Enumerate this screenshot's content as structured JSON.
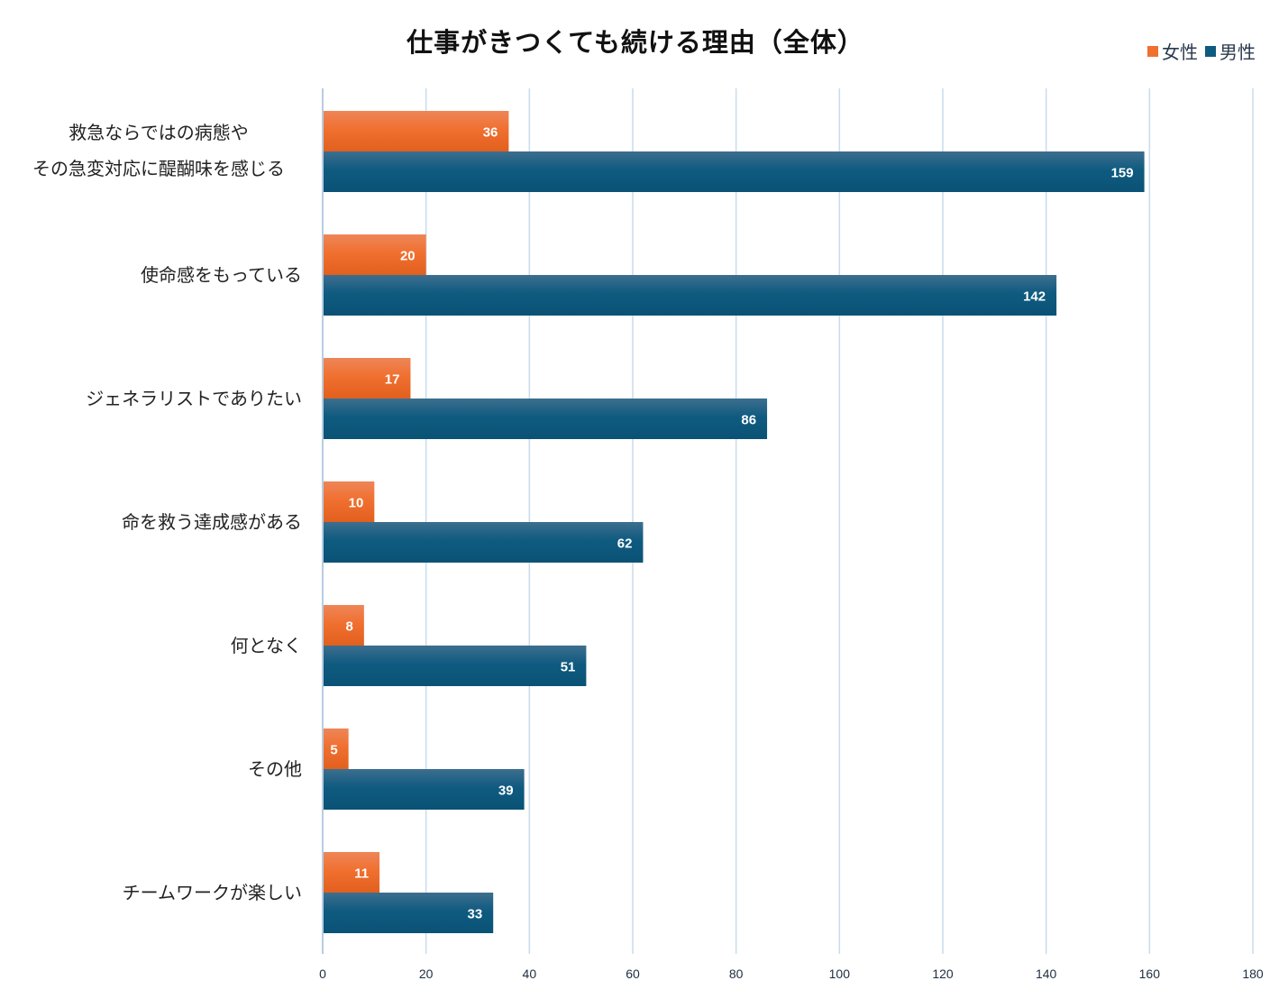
{
  "chart_data": {
    "type": "bar",
    "orientation": "horizontal",
    "title": "仕事がきつくても続ける理由（全体）",
    "xlabel": "",
    "ylabel": "",
    "xlim": [
      0,
      180
    ],
    "xticks": [
      0,
      20,
      40,
      60,
      80,
      100,
      120,
      140,
      160,
      180
    ],
    "grid": "vertical",
    "legend_position": "top-right",
    "categories": [
      [
        "救急ならではの病態や",
        "その急変対応に醍醐味を感じる"
      ],
      [
        "使命感をもっている"
      ],
      [
        "ジェネラリストでありたい"
      ],
      [
        "命を救う達成感がある"
      ],
      [
        "何となく"
      ],
      [
        "その他"
      ],
      [
        "チームワークが楽しい"
      ]
    ],
    "series": [
      {
        "name": "女性",
        "color": "#f07030",
        "values": [
          36,
          20,
          17,
          10,
          8,
          5,
          11
        ]
      },
      {
        "name": "男性",
        "color": "#0e5a80",
        "values": [
          159,
          142,
          86,
          62,
          51,
          39,
          33
        ]
      }
    ]
  }
}
